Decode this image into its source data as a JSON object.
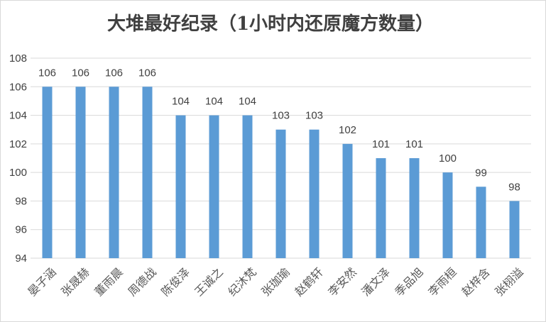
{
  "chart_data": {
    "type": "bar",
    "title": "大堆最好纪录（1小时内还原魔方数量）",
    "categories": [
      "晏子涵",
      "张晟赫",
      "董雨晨",
      "周德战",
      "陈俊泽",
      "王诚之",
      "纪沐梵",
      "张珈瑜",
      "赵鹤轩",
      "李安然",
      "潘文泽",
      "季品旭",
      "李雨桓",
      "赵梓含",
      "张栩溢"
    ],
    "values": [
      106,
      106,
      106,
      106,
      104,
      104,
      104,
      103,
      103,
      102,
      101,
      101,
      100,
      99,
      98
    ],
    "ylim": [
      94,
      108
    ],
    "yticks": [
      94,
      96,
      98,
      100,
      102,
      104,
      106,
      108
    ],
    "xlabel": "",
    "ylabel": "",
    "grid": true,
    "legend": "none",
    "data_labels": true,
    "colors": {
      "bar": "#5b9bd5",
      "grid": "#d9d9d9",
      "text": "#404040",
      "category_text": "#595959"
    }
  }
}
